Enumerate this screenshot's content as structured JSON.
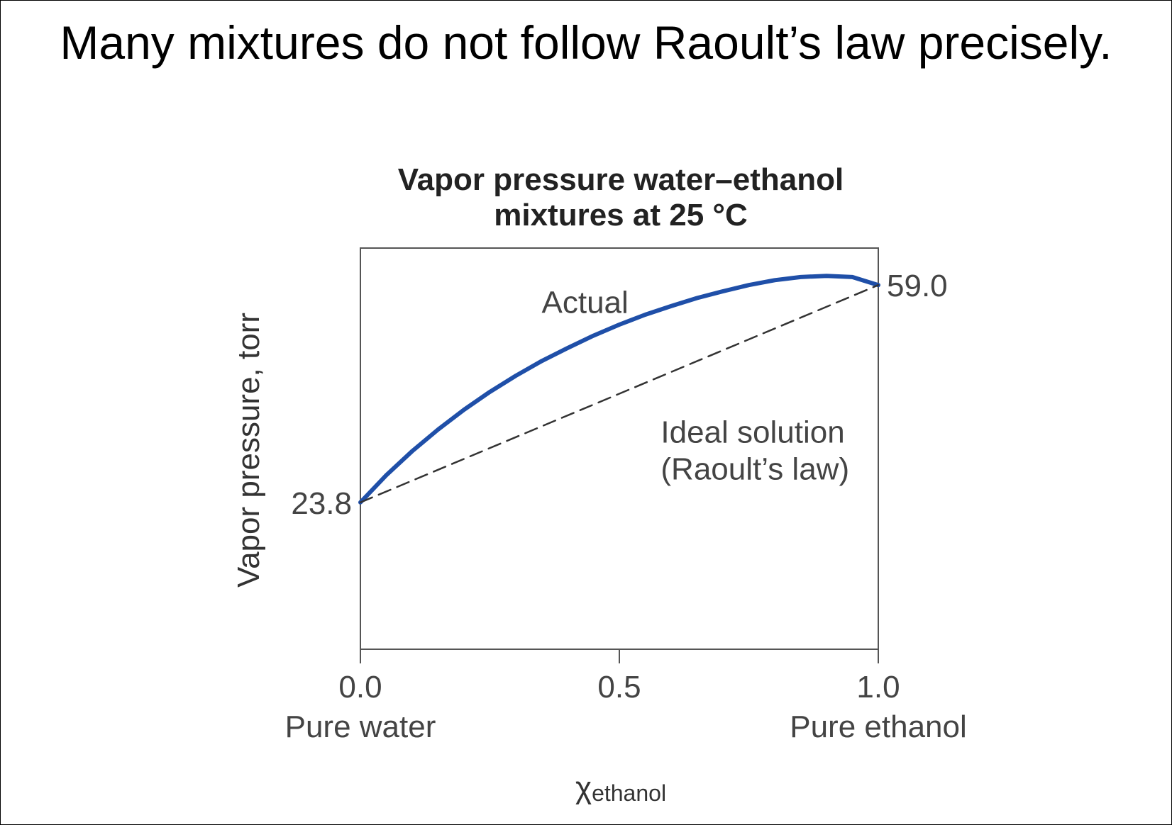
{
  "slide": {
    "title": "Many mixtures do not follow Raoult’s law precisely."
  },
  "chart_data": {
    "type": "line",
    "title_lines": [
      "Vapor pressure water–ethanol",
      "mixtures at 25 °C"
    ],
    "ylabel": "Vapor pressure, torr",
    "xlabel_symbol": "χ",
    "xlabel_subscript": "ethanol",
    "xlim": [
      0,
      1
    ],
    "ylim": [
      0,
      65
    ],
    "grid": false,
    "legend": "none",
    "x_ticks": [
      {
        "value": 0.0,
        "label": "0.0",
        "sublabel": "Pure water"
      },
      {
        "value": 0.5,
        "label": "0.5",
        "sublabel": ""
      },
      {
        "value": 1.0,
        "label": "1.0",
        "sublabel": "Pure ethanol"
      }
    ],
    "y_value_labels": [
      {
        "x": 0.0,
        "y": 23.8,
        "label": "23.8",
        "side": "left"
      },
      {
        "x": 1.0,
        "y": 59.0,
        "label": "59.0",
        "side": "right"
      }
    ],
    "series": [
      {
        "name": "Actual",
        "style": "solid",
        "color": "#1f4fa8",
        "x": [
          0.0,
          0.05,
          0.1,
          0.15,
          0.2,
          0.25,
          0.3,
          0.35,
          0.4,
          0.45,
          0.5,
          0.55,
          0.6,
          0.65,
          0.7,
          0.75,
          0.8,
          0.85,
          0.9,
          0.95,
          1.0
        ],
        "y": [
          23.8,
          28.2,
          32.1,
          35.6,
          38.8,
          41.7,
          44.3,
          46.7,
          48.8,
          50.8,
          52.6,
          54.2,
          55.6,
          56.9,
          58.0,
          59.0,
          59.8,
          60.3,
          60.5,
          60.3,
          59.0
        ]
      },
      {
        "name": "Ideal solution (Raoult’s law)",
        "style": "dashed",
        "color": "#333333",
        "x": [
          0.0,
          1.0
        ],
        "y": [
          23.8,
          59.0
        ]
      }
    ],
    "annotations": [
      {
        "text": "Actual",
        "x": 0.35,
        "y": 54.5
      },
      {
        "text": "Ideal solution",
        "x": 0.58,
        "y": 33.5
      },
      {
        "text": "(Raoult’s law)",
        "x": 0.58,
        "y": 27.5
      }
    ]
  }
}
